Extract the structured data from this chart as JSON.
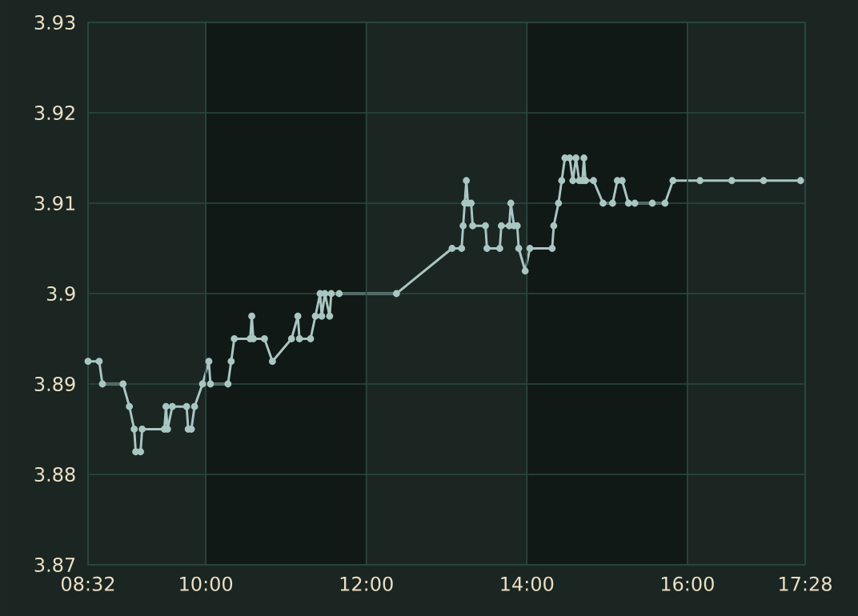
{
  "chart_data": {
    "type": "line",
    "x": [
      8.533,
      8.672,
      8.712,
      8.969,
      9.048,
      9.108,
      9.127,
      9.187,
      9.207,
      9.484,
      9.504,
      9.523,
      9.583,
      9.761,
      9.781,
      9.82,
      9.86,
      9.959,
      10.038,
      10.058,
      10.276,
      10.316,
      10.355,
      10.553,
      10.573,
      10.592,
      10.731,
      10.83,
      11.068,
      11.147,
      11.167,
      11.305,
      11.365,
      11.424,
      11.444,
      11.484,
      11.543,
      11.563,
      11.662,
      12.375,
      13.068,
      13.187,
      13.206,
      13.226,
      13.246,
      13.266,
      13.306,
      13.325,
      13.484,
      13.503,
      13.662,
      13.682,
      13.781,
      13.8,
      13.84,
      13.88,
      13.899,
      13.979,
      14.038,
      14.315,
      14.335,
      14.394,
      14.434,
      14.474,
      14.533,
      14.573,
      14.612,
      14.652,
      14.692,
      14.711,
      14.731,
      14.83,
      14.949,
      15.068,
      15.127,
      15.187,
      15.266,
      15.345,
      15.563,
      15.721,
      15.82,
      16.157,
      16.553,
      16.949,
      17.41
    ],
    "series": [
      {
        "color": "#a9c6c2",
        "values": [
          3.8925,
          3.8925,
          3.89,
          3.89,
          3.8875,
          3.885,
          3.8825,
          3.8825,
          3.885,
          3.885,
          3.8875,
          3.885,
          3.8875,
          3.8875,
          3.885,
          3.885,
          3.8875,
          3.89,
          3.8925,
          3.89,
          3.89,
          3.8925,
          3.895,
          3.895,
          3.8975,
          3.895,
          3.895,
          3.8925,
          3.895,
          3.8975,
          3.895,
          3.895,
          3.8975,
          3.9,
          3.8975,
          3.9,
          3.8975,
          3.9,
          3.9,
          3.9,
          3.905,
          3.905,
          3.9075,
          3.91,
          3.9125,
          3.91,
          3.91,
          3.9075,
          3.9075,
          3.905,
          3.905,
          3.9075,
          3.9075,
          3.91,
          3.9075,
          3.9075,
          3.905,
          3.9025,
          3.905,
          3.905,
          3.9075,
          3.91,
          3.9125,
          3.915,
          3.915,
          3.9125,
          3.915,
          3.9125,
          3.9125,
          3.915,
          3.9125,
          3.9125,
          3.91,
          3.91,
          3.9125,
          3.9125,
          3.91,
          3.91,
          3.91,
          3.91,
          3.9125,
          3.9125,
          3.9125,
          3.9125,
          3.9125
        ]
      }
    ],
    "xlim": [
      8.533,
      17.467
    ],
    "xticks": [
      {
        "value": 8.533,
        "label": "08:32"
      },
      {
        "value": 10,
        "label": "10:00"
      },
      {
        "value": 12,
        "label": "12:00"
      },
      {
        "value": 14,
        "label": "14:00"
      },
      {
        "value": 16,
        "label": "16:00"
      },
      {
        "value": 17.467,
        "label": "17:28"
      }
    ],
    "ylim": [
      3.87,
      3.93
    ],
    "yticks": [
      3.87,
      3.88,
      3.89,
      3.9,
      3.91,
      3.92,
      3.93
    ],
    "bands": [
      {
        "axis": "x",
        "from": 10,
        "to": 12,
        "color": "#111916"
      },
      {
        "axis": "x",
        "from": 14,
        "to": 16,
        "color": "#111916"
      }
    ],
    "grid": true,
    "marker": "circle",
    "line_style": "solid"
  }
}
